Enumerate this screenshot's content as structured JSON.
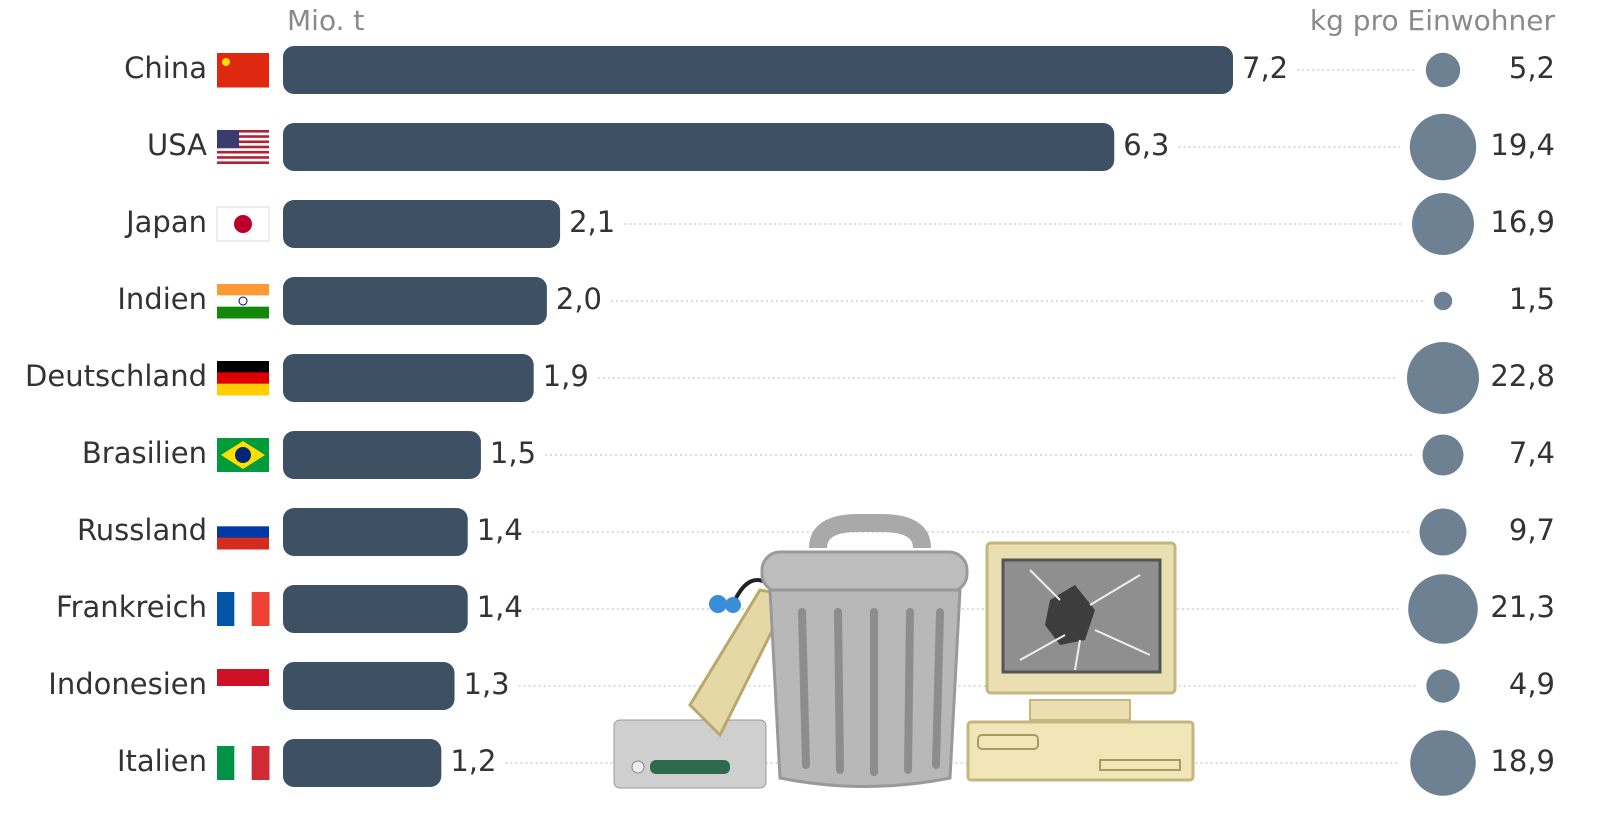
{
  "chart_data": {
    "type": "bar",
    "orientation": "horizontal",
    "x_label": "Mio. t",
    "categories": [
      "China",
      "USA",
      "Japan",
      "Indien",
      "Deutschland",
      "Brasilien",
      "Russland",
      "Frankreich",
      "Indonesien",
      "Italien"
    ],
    "values": [
      7.2,
      6.3,
      2.1,
      2.0,
      1.9,
      1.5,
      1.4,
      1.4,
      1.3,
      1.2
    ],
    "value_labels": [
      "7,2",
      "6,3",
      "2,1",
      "2,0",
      "1,9",
      "1,5",
      "1,4",
      "1,4",
      "1,3",
      "1,2"
    ],
    "color": "#3e5063",
    "bubbles": {
      "label": "kg pro Einwohner",
      "values": [
        5.2,
        19.4,
        16.9,
        1.5,
        22.8,
        7.4,
        9.7,
        21.3,
        4.9,
        18.9
      ],
      "value_labels": [
        "5,2",
        "19,4",
        "16,9",
        "1,5",
        "22,8",
        "7,4",
        "9,7",
        "21,3",
        "4,9",
        "18,9"
      ],
      "color": "#6e8193"
    }
  }
}
